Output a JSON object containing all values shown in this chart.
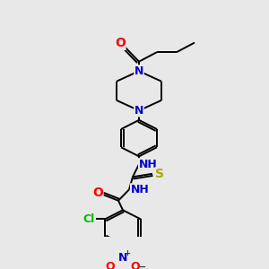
{
  "bg_color": "#e8e8e8",
  "bond_color": "#000000",
  "atom_colors": {
    "O": "#ff0000",
    "N": "#0000cc",
    "S": "#aaaa00",
    "Cl": "#00bb00",
    "C": "#000000"
  },
  "figsize": [
    3.0,
    3.0
  ],
  "dpi": 100,
  "lw": 1.4
}
